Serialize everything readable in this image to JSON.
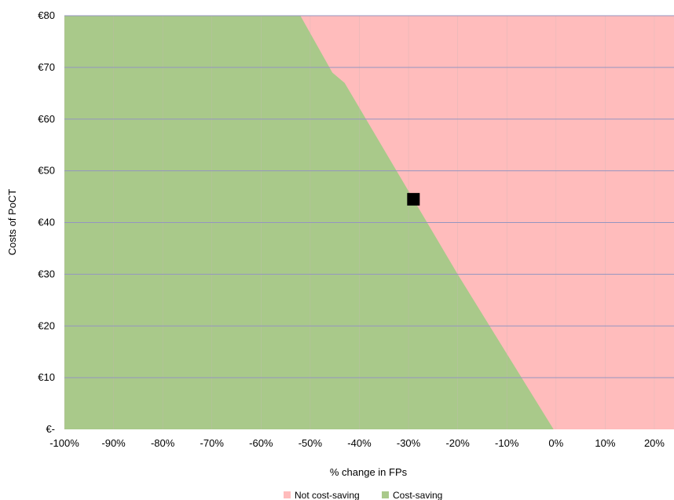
{
  "chart_data": {
    "type": "area",
    "xlabel": "% change in FPs",
    "ylabel": "Costs of PoCT",
    "xlim": [
      -100,
      24
    ],
    "ylim": [
      0,
      80
    ],
    "x_ticks": [
      -100,
      -90,
      -80,
      -70,
      -60,
      -50,
      -40,
      -30,
      -20,
      -10,
      0,
      10,
      20
    ],
    "x_tick_labels": [
      "-100%",
      "-90%",
      "-80%",
      "-70%",
      "-60%",
      "-50%",
      "-40%",
      "-30%",
      "-20%",
      "-10%",
      "0%",
      "10%",
      "20%"
    ],
    "y_ticks": [
      0,
      10,
      20,
      30,
      40,
      50,
      60,
      70,
      80
    ],
    "y_tick_labels": [
      "€-",
      "€10",
      "€20",
      "€30",
      "€40",
      "€50",
      "€60",
      "€70",
      "€80"
    ],
    "grid": true,
    "legend_position": "bottom",
    "regions": [
      {
        "name": "Not cost-saving",
        "color": "#ffbcbc"
      },
      {
        "name": "Cost-saving",
        "color": "#a9c98a"
      }
    ],
    "boundary": [
      {
        "x": -52,
        "y": 80
      },
      {
        "x": -45.5,
        "y": 69
      },
      {
        "x": -43,
        "y": 67
      },
      {
        "x": -20,
        "y": 30
      },
      {
        "x": -0.5,
        "y": 0
      }
    ],
    "point": {
      "x": -29,
      "y": 44.5
    },
    "colors": {
      "grid": "#9595c0",
      "point": "#000000"
    }
  }
}
